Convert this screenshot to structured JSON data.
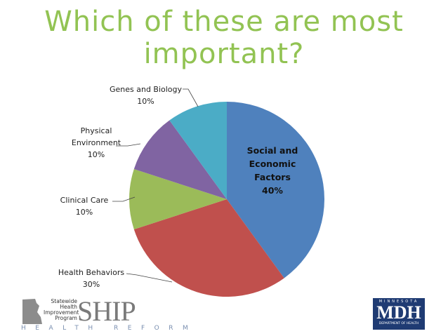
{
  "chart_data": {
    "type": "pie",
    "title": "Which of these are most important?",
    "categories": [
      "Social and Economic Factors",
      "Health Behaviors",
      "Clinical Care",
      "Physical Environment",
      "Genes and Biology"
    ],
    "values": [
      40,
      30,
      10,
      10,
      10
    ],
    "value_labels": [
      "40%",
      "30%",
      "10%",
      "10%",
      "10%"
    ],
    "colors": [
      "#4f81bd",
      "#c0504d",
      "#9bbb59",
      "#8064a2",
      "#4bacc6"
    ]
  },
  "logos": {
    "ship": {
      "lines": [
        "Statewide",
        "Health",
        "Improvement",
        "Program"
      ],
      "name": "SHIP",
      "tagline": "HEALTH REFORM"
    },
    "mdh": {
      "state": "MINNESOTA",
      "name": "MDH",
      "department": "DEPARTMENT OF HEALTH"
    }
  }
}
